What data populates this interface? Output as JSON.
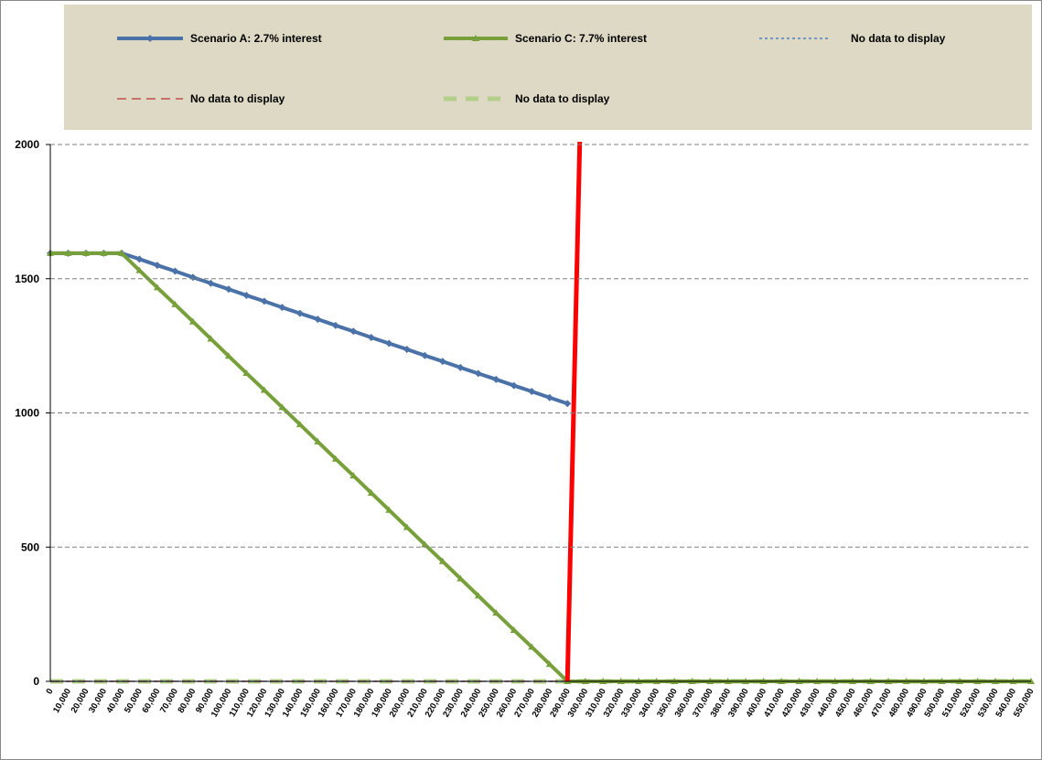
{
  "chart_data": {
    "type": "line",
    "categories": [
      "0",
      "10,000",
      "20,000",
      "30,000",
      "40,000",
      "50,000",
      "60,000",
      "70,000",
      "80,000",
      "90,000",
      "100,000",
      "110,000",
      "120,000",
      "130,000",
      "140,000",
      "150,000",
      "160,000",
      "170,000",
      "180,000",
      "190,000",
      "200,000",
      "210,000",
      "220,000",
      "230,000",
      "240,000",
      "250,000",
      "260,000",
      "270,000",
      "280,000",
      "290,000",
      "300,000",
      "310,000",
      "320,000",
      "330,000",
      "340,000",
      "350,000",
      "360,000",
      "370,000",
      "380,000",
      "390,000",
      "400,000",
      "410,000",
      "420,000",
      "430,000",
      "440,000",
      "450,000",
      "460,000",
      "470,000",
      "480,000",
      "490,000",
      "500,000",
      "510,000",
      "520,000",
      "530,000",
      "540,000",
      "550,000"
    ],
    "ylim": [
      0,
      2000
    ],
    "yticks": [
      0,
      500,
      1000,
      1500,
      2000
    ],
    "grid": true,
    "legend": "top",
    "series": [
      {
        "name": "No data to display",
        "color": "#b3cf8b",
        "line_style": "dashed",
        "width": 5,
        "marker": "none",
        "values": [
          0,
          0,
          0,
          0,
          0,
          0,
          0,
          0,
          0,
          0,
          0,
          0,
          0,
          0,
          0,
          0,
          0,
          0,
          0,
          0,
          0,
          0,
          0,
          0,
          0,
          0,
          0,
          0,
          0,
          0,
          0,
          0,
          0,
          0,
          0,
          0,
          0,
          0,
          0,
          0,
          0,
          0,
          0,
          0,
          0,
          0,
          0,
          0,
          0,
          0,
          0,
          0,
          0,
          0,
          0,
          0
        ]
      },
      {
        "name": "No data to display",
        "color": "#c0504d",
        "line_style": "dashed",
        "width": 1.5,
        "marker": "none",
        "values": [
          0,
          0,
          0,
          0,
          0,
          0,
          0,
          0,
          0,
          0,
          0,
          0,
          0,
          0,
          0,
          0,
          0,
          0,
          0,
          0,
          0,
          0,
          0,
          0,
          0,
          0,
          0,
          0,
          0,
          0,
          0,
          0,
          0,
          0,
          0,
          0,
          0,
          0,
          0,
          0,
          0,
          0,
          0,
          0,
          0,
          0,
          0,
          0,
          0,
          0,
          0,
          0,
          0,
          0,
          0,
          0
        ]
      },
      {
        "name": "No data to display",
        "color": "#4f81bd",
        "line_style": "dotted",
        "width": 1.5,
        "marker": "none",
        "values": [
          0,
          0,
          0,
          0,
          0,
          0,
          0,
          0,
          0,
          0,
          0,
          0,
          0,
          0,
          0,
          0,
          0,
          0,
          0,
          0,
          0,
          0,
          0,
          0,
          0,
          0,
          0,
          0,
          0,
          0,
          0,
          0,
          0,
          0,
          0,
          0,
          0,
          0,
          0,
          0,
          0,
          0,
          0,
          0,
          0,
          0,
          0,
          0,
          0,
          0,
          0,
          0,
          0,
          0,
          0,
          0
        ]
      },
      {
        "name": "Scenario A: 2.7% interest",
        "color": "#4a72a8",
        "line_style": "solid",
        "width": 4,
        "marker": "diamond",
        "values": [
          1595,
          1595,
          1595,
          1595,
          1595,
          1573,
          1550,
          1528,
          1505,
          1483,
          1461,
          1438,
          1416,
          1393,
          1371,
          1349,
          1326,
          1304,
          1281,
          1259,
          1237,
          1214,
          1192,
          1169,
          1147,
          1125,
          1102,
          1080,
          1057,
          1035,
          null,
          null,
          null,
          null,
          null,
          null,
          null,
          null,
          null,
          null,
          null,
          null,
          null,
          null,
          null,
          null,
          null,
          null,
          null,
          null,
          null,
          null,
          null,
          null,
          null,
          null
        ]
      },
      {
        "name": "Scenario C: 7.7% interest",
        "color": "#77a03b",
        "line_style": "solid",
        "width": 4,
        "marker": "triangle",
        "values": [
          1595,
          1595,
          1595,
          1595,
          1595,
          1531,
          1467,
          1404,
          1340,
          1276,
          1212,
          1148,
          1085,
          1021,
          957,
          893,
          829,
          766,
          702,
          638,
          574,
          510,
          447,
          383,
          319,
          255,
          191,
          128,
          64,
          0,
          0,
          0,
          0,
          0,
          0,
          0,
          0,
          0,
          0,
          0,
          0,
          0,
          0,
          0,
          0,
          0,
          0,
          0,
          0,
          0,
          0,
          0,
          0,
          0,
          0,
          0
        ]
      },
      {
        "color": "#ff0000",
        "line_style": "solid",
        "width": 5,
        "marker": "none",
        "values": [
          null,
          null,
          null,
          null,
          null,
          null,
          null,
          null,
          null,
          null,
          null,
          null,
          null,
          null,
          null,
          null,
          null,
          null,
          null,
          null,
          null,
          null,
          null,
          null,
          null,
          null,
          null,
          null,
          null,
          0,
          2900,
          null,
          null,
          null,
          null,
          null,
          null,
          null,
          null,
          null,
          null,
          null,
          null,
          null,
          null,
          null,
          null,
          null,
          null,
          null,
          null,
          null,
          null,
          null,
          null,
          null
        ]
      }
    ]
  }
}
